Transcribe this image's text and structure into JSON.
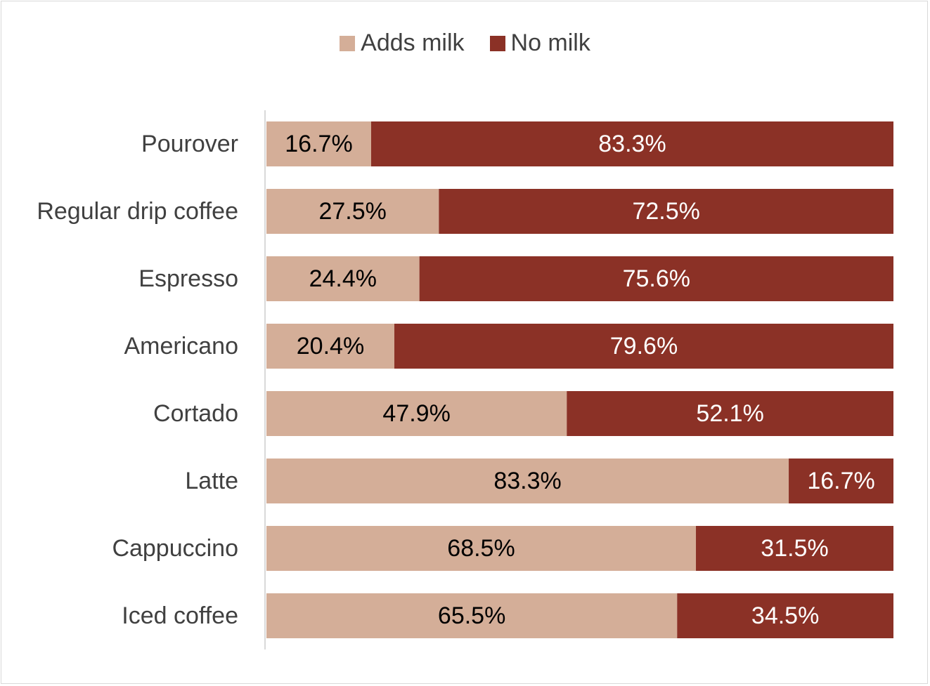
{
  "chart_data": {
    "type": "bar",
    "orientation": "horizontal",
    "stacked": true,
    "percent": true,
    "categories": [
      "Pourover",
      "Regular drip coffee",
      "Espresso",
      "Americano",
      "Cortado",
      "Latte",
      "Cappuccino",
      "Iced coffee"
    ],
    "series": [
      {
        "name": "Adds milk",
        "values": [
          16.7,
          27.5,
          24.4,
          20.4,
          47.9,
          83.3,
          68.5,
          65.5
        ],
        "labels": [
          "16.7%",
          "27.5%",
          "24.4%",
          "20.4%",
          "47.9%",
          "83.3%",
          "68.5%",
          "65.5%"
        ],
        "color": "#d4ae98",
        "label_color": "#000000"
      },
      {
        "name": "No milk",
        "values": [
          83.3,
          72.5,
          75.6,
          79.6,
          52.1,
          16.7,
          31.5,
          34.5
        ],
        "labels": [
          "83.3%",
          "72.5%",
          "75.6%",
          "79.6%",
          "52.1%",
          "16.7%",
          "31.5%",
          "34.5%"
        ],
        "color": "#8b3126",
        "label_color": "#ffffff"
      }
    ],
    "xlim": [
      0,
      100
    ],
    "legend_position": "top",
    "grid": false
  }
}
